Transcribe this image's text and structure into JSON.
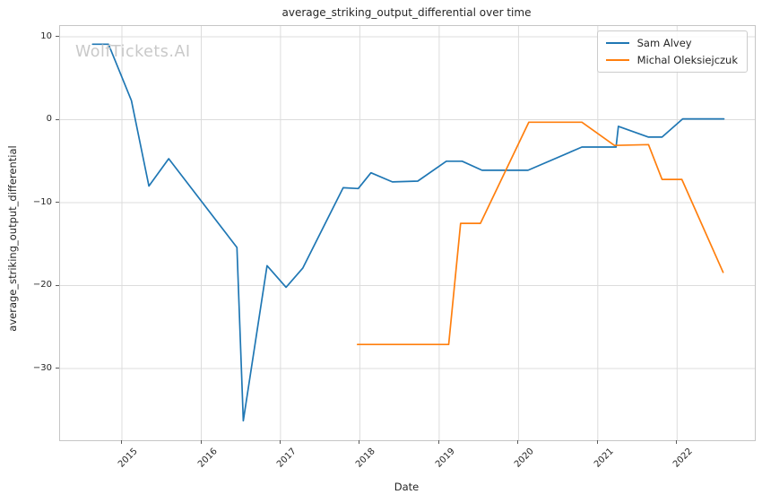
{
  "title": "average_striking_output_differential over time",
  "watermark": "WolfTickets.AI",
  "xlabel": "Date",
  "ylabel": "average_striking_output_differential",
  "colors": {
    "series_blue": "#1f77b4",
    "series_orange": "#ff7f0e",
    "grid": "#dcdcdc",
    "spine": "#c6c6c6",
    "text": "#262626",
    "watermark": "#c9c9c9"
  },
  "chart_data": {
    "type": "line",
    "title": "average_striking_output_differential over time",
    "xlabel": "Date",
    "ylabel": "average_striking_output_differential",
    "grid": true,
    "legend_position": "upper right",
    "xlim": [
      2014.22,
      2022.98
    ],
    "ylim": [
      -38.65,
      11.3
    ],
    "xticks": {
      "values": [
        2015,
        2016,
        2017,
        2018,
        2019,
        2020,
        2021,
        2022
      ],
      "labels": [
        "2015",
        "2016",
        "2017",
        "2018",
        "2019",
        "2020",
        "2021",
        "2022"
      ]
    },
    "yticks": {
      "values": [
        10,
        0,
        -10,
        -20,
        -30
      ],
      "labels": [
        "10",
        "0",
        "−10",
        "−20",
        "−30"
      ]
    },
    "series": [
      {
        "name": "Sam Alvey",
        "color": "#1f77b4",
        "x": [
          2014.63,
          2014.83,
          2015.12,
          2015.34,
          2015.59,
          2016.45,
          2016.53,
          2016.83,
          2017.07,
          2017.28,
          2017.79,
          2017.98,
          2018.14,
          2018.41,
          2018.73,
          2019.09,
          2019.29,
          2019.54,
          2020.12,
          2020.8,
          2021.23,
          2021.26,
          2021.64,
          2021.81,
          2022.07,
          2022.59
        ],
        "y": [
          9.1,
          9.1,
          2.3,
          -8.0,
          -4.7,
          -15.4,
          -36.3,
          -17.6,
          -20.2,
          -17.9,
          -8.2,
          -8.3,
          -6.4,
          -7.5,
          -7.4,
          -5.0,
          -5.0,
          -6.1,
          -6.1,
          -3.3,
          -3.3,
          -0.8,
          -2.1,
          -2.1,
          0.1,
          0.1
        ]
      },
      {
        "name": "Michal Oleksiejczuk",
        "color": "#ff7f0e",
        "x": [
          2017.97,
          2019.12,
          2019.27,
          2019.52,
          2020.13,
          2020.8,
          2021.21,
          2021.64,
          2021.81,
          2022.06,
          2022.58
        ],
        "y": [
          -27.1,
          -27.1,
          -12.5,
          -12.5,
          -0.3,
          -0.3,
          -3.1,
          -3.0,
          -7.2,
          -7.2,
          -18.4
        ]
      }
    ]
  }
}
